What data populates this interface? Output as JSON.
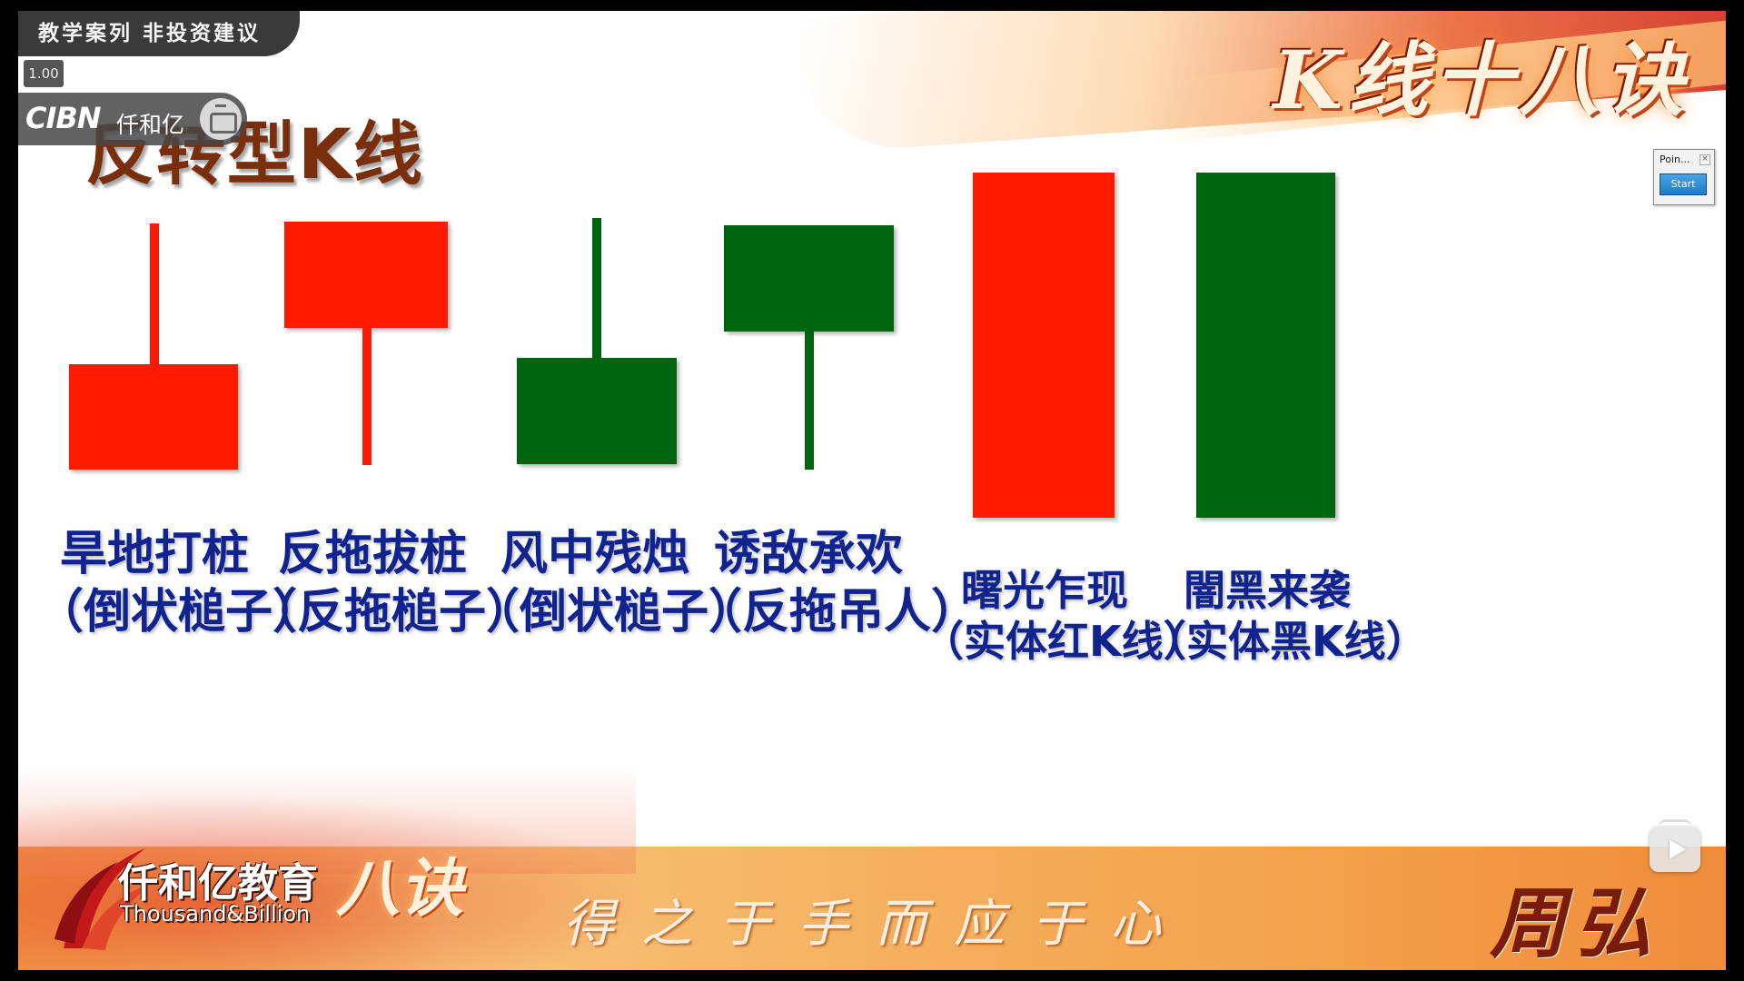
{
  "header": {
    "disclaimer": "教学案列 非投资建议",
    "speed": "1.00",
    "channel_brand": "CIBN",
    "channel_name": "仟和亿",
    "series_title": "K线十八诀",
    "page_heading": "反转型K线"
  },
  "pointer_widget": {
    "title": "Poin...",
    "close": "×",
    "start_label": "Start"
  },
  "candles": [
    {
      "color": "red",
      "shape": "hammer-inverted",
      "caption_line1": "旱地打桩",
      "caption_line2": "（倒状槌子）"
    },
    {
      "color": "red",
      "shape": "hammer",
      "caption_line1": "反拖拔桩",
      "caption_line2": "（反拖槌子）"
    },
    {
      "color": "green",
      "shape": "hammer-inverted",
      "caption_line1": "风中残烛",
      "caption_line2": "（倒状槌子）"
    },
    {
      "color": "green",
      "shape": "hammer",
      "caption_line1": "诱敌承欢",
      "caption_line2": "（反拖吊人）"
    },
    {
      "color": "red",
      "shape": "solid",
      "caption_line1": "曙光乍现",
      "caption_line2": "（实体红K线）"
    },
    {
      "color": "green",
      "shape": "solid",
      "caption_line1": "闇黑来袭",
      "caption_line2": "（实体黑K线）"
    }
  ],
  "colors": {
    "red": "#ff1a00",
    "green": "#00650f",
    "caption": "#10238f",
    "heading": "#7a2f0c"
  },
  "footer": {
    "logo_cn": "仟和亿教育",
    "logo_en": "Thousand&Billion",
    "art_text": "八诀",
    "motto": "得之于手而应于心",
    "presenter": "周弘"
  },
  "player": {
    "play_icon": "play-icon"
  }
}
